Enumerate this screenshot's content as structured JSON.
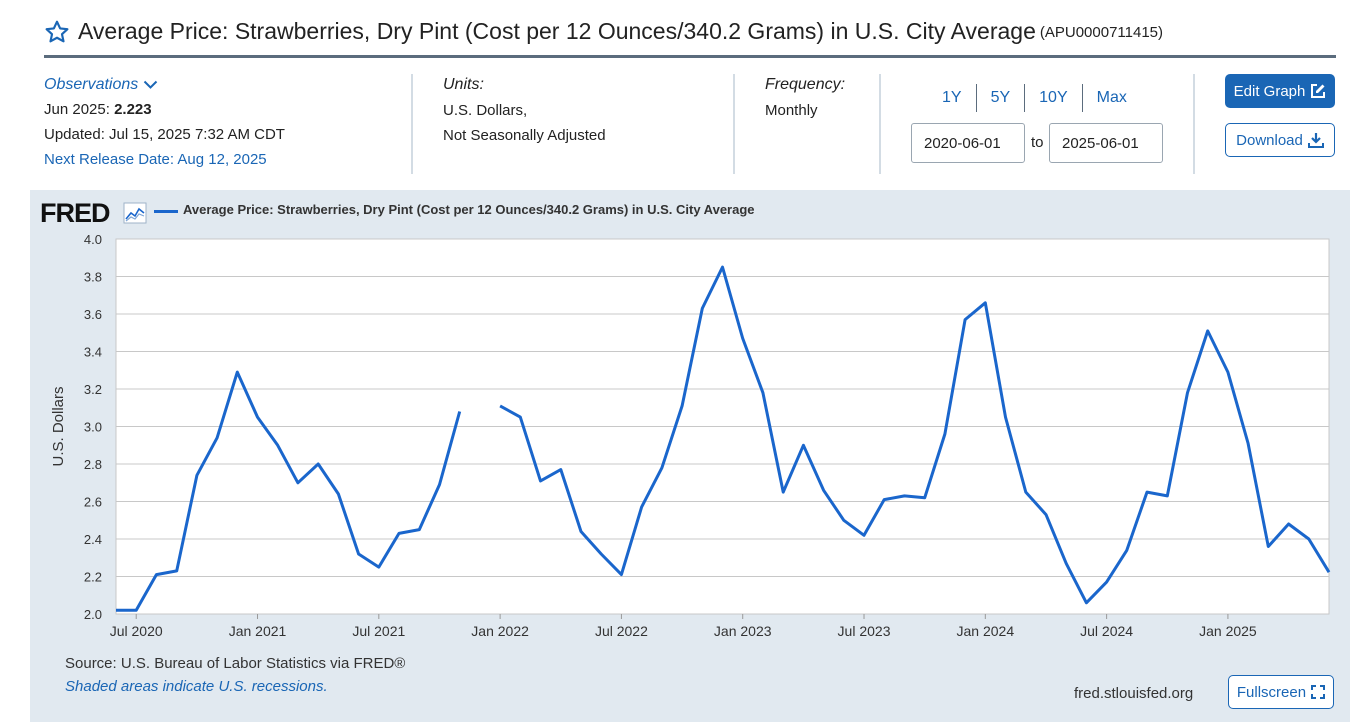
{
  "header": {
    "title": "Average Price: Strawberries, Dry Pint (Cost per 12 Ounces/340.2 Grams) in U.S. City Average",
    "series_id": "(APU0000711415)",
    "star_icon": "star-outline-icon"
  },
  "observations": {
    "link_label": "Observations",
    "date_label": "Jun 2025:",
    "value": "2.223",
    "updated": "Updated: Jul 15, 2025 7:32 AM CDT",
    "next_release": "Next Release Date: Aug 12, 2025"
  },
  "units": {
    "label": "Units:",
    "line1": "U.S. Dollars,",
    "line2": "Not Seasonally Adjusted"
  },
  "frequency": {
    "label": "Frequency:",
    "value": "Monthly"
  },
  "range": {
    "buttons": [
      "1Y",
      "5Y",
      "10Y",
      "Max"
    ],
    "start_date": "2020-06-01",
    "to_label": "to",
    "end_date": "2025-06-01"
  },
  "actions": {
    "edit_graph": "Edit Graph",
    "download": "Download",
    "fullscreen": "Fullscreen"
  },
  "graph": {
    "logo": "FRED",
    "legend": "Average Price: Strawberries, Dry Pint (Cost per 12 Ounces/340.2 Grams) in U.S. City Average",
    "source": "Source: U.S. Bureau of Labor Statistics via FRED®",
    "recession_note": "Shaded areas indicate U.S. recessions.",
    "url": "fred.stlouisfed.org",
    "line_color": "#1a66cc"
  },
  "chart_data": {
    "type": "line",
    "ylabel": "U.S. Dollars",
    "xlabel": "",
    "ylim": [
      2.0,
      4.0
    ],
    "yticks": [
      2.0,
      2.2,
      2.4,
      2.6,
      2.8,
      3.0,
      3.2,
      3.4,
      3.6,
      3.8,
      4.0
    ],
    "xtick_labels": [
      "Jul 2020",
      "Jan 2021",
      "Jul 2021",
      "Jan 2022",
      "Jul 2022",
      "Jan 2023",
      "Jul 2023",
      "Jan 2024",
      "Jul 2024",
      "Jan 2025"
    ],
    "xtick_dates": [
      "2020-07",
      "2021-01",
      "2021-07",
      "2022-01",
      "2022-07",
      "2023-01",
      "2023-07",
      "2024-01",
      "2024-07",
      "2025-01"
    ],
    "grid": true,
    "legend_position": "top",
    "series": [
      {
        "name": "Average Price: Strawberries, Dry Pint (Cost per 12 Ounces/340.2 Grams) in U.S. City Average",
        "x": [
          "2020-06",
          "2020-07",
          "2020-08",
          "2020-09",
          "2020-10",
          "2020-11",
          "2020-12",
          "2021-01",
          "2021-02",
          "2021-03",
          "2021-04",
          "2021-05",
          "2021-06",
          "2021-07",
          "2021-08",
          "2021-09",
          "2021-10",
          "2021-11",
          "2021-12",
          "2022-01",
          "2022-02",
          "2022-03",
          "2022-04",
          "2022-05",
          "2022-06",
          "2022-07",
          "2022-08",
          "2022-09",
          "2022-10",
          "2022-11",
          "2022-12",
          "2023-01",
          "2023-02",
          "2023-03",
          "2023-04",
          "2023-05",
          "2023-06",
          "2023-07",
          "2023-08",
          "2023-09",
          "2023-10",
          "2023-11",
          "2023-12",
          "2024-01",
          "2024-02",
          "2024-03",
          "2024-04",
          "2024-05",
          "2024-06",
          "2024-07",
          "2024-08",
          "2024-09",
          "2024-10",
          "2024-11",
          "2024-12",
          "2025-01",
          "2025-02",
          "2025-03",
          "2025-04",
          "2025-05",
          "2025-06"
        ],
        "values": [
          2.02,
          2.02,
          2.21,
          2.23,
          2.74,
          2.94,
          3.29,
          3.05,
          2.9,
          2.7,
          2.8,
          2.64,
          2.32,
          2.25,
          2.43,
          2.45,
          2.69,
          3.08,
          null,
          3.11,
          3.05,
          2.71,
          2.77,
          2.44,
          2.32,
          2.21,
          2.57,
          2.78,
          3.11,
          3.63,
          3.85,
          3.47,
          3.18,
          2.65,
          2.9,
          2.66,
          2.5,
          2.42,
          2.61,
          2.63,
          2.62,
          2.96,
          3.57,
          3.66,
          3.05,
          2.65,
          2.53,
          2.27,
          2.06,
          2.17,
          2.34,
          2.65,
          2.63,
          3.18,
          3.51,
          3.29,
          2.91,
          2.36,
          2.48,
          2.4,
          2.223
        ]
      }
    ]
  }
}
